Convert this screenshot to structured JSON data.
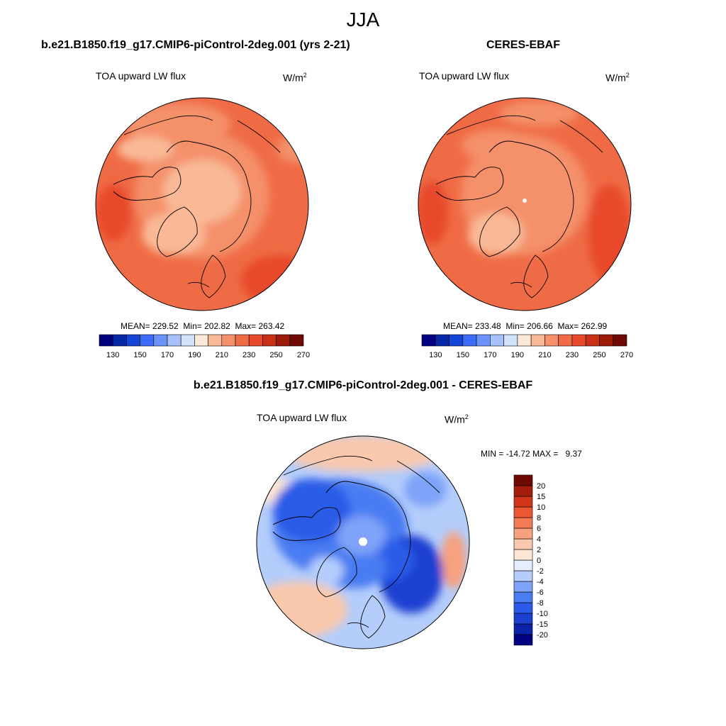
{
  "season": "JJA",
  "colors": {
    "abs_levels": [
      "#000080",
      "#0528a8",
      "#1446d6",
      "#3d6bf5",
      "#6b93f7",
      "#a5c2fb",
      "#d2e3fc",
      "#fde8d8",
      "#f9b996",
      "#f4906a",
      "#ef6b45",
      "#e7482a",
      "#c83015",
      "#9b1a08",
      "#6e0a02"
    ],
    "diff_levels": [
      "#000080",
      "#0a23a8",
      "#1a3fd1",
      "#2b5be8",
      "#4a7cf2",
      "#7ea3f8",
      "#b4cdfb",
      "#e4eefd",
      "#fde6d6",
      "#fac8ad",
      "#f7a17f",
      "#f27a54",
      "#ec5631",
      "#d3351a",
      "#a41d0a",
      "#6e0a02"
    ]
  },
  "panels": {
    "model": {
      "title": "b.e21.B1850.f19_g17.CMIP6-piControl-2deg.001 (yrs 2-21)",
      "variable": "TOA upward LW flux",
      "units_base": "W/m",
      "units_exp": "2",
      "stats": {
        "mean_label": "MEAN=",
        "mean": "229.52",
        "min_label": "Min=",
        "min": "202.82",
        "max_label": "Max=",
        "max": "263.42"
      },
      "colorbar_ticks": [
        "130",
        "150",
        "170",
        "190",
        "210",
        "230",
        "250",
        "270"
      ]
    },
    "obs": {
      "title": "CERES-EBAF",
      "variable": "TOA upward LW flux",
      "units_base": "W/m",
      "units_exp": "2",
      "stats": {
        "mean_label": "MEAN=",
        "mean": "233.48",
        "min_label": "Min=",
        "min": "206.66",
        "max_label": "Max=",
        "max": "262.99"
      },
      "colorbar_ticks": [
        "130",
        "150",
        "170",
        "190",
        "210",
        "230",
        "250",
        "270"
      ]
    },
    "diff": {
      "title": "b.e21.B1850.f19_g17.CMIP6-piControl-2deg.001 - CERES-EBAF",
      "variable": "TOA upward LW flux",
      "units_base": "W/m",
      "units_exp": "2",
      "stats": {
        "min_label": "MIN =",
        "min": "-14.72",
        "max_label": "MAX =",
        "max": "9.37"
      },
      "colorbar_ticks": [
        "20",
        "15",
        "10",
        "8",
        "6",
        "4",
        "2",
        "0",
        "-2",
        "-4",
        "-6",
        "-8",
        "-10",
        "-15",
        "-20"
      ]
    }
  }
}
